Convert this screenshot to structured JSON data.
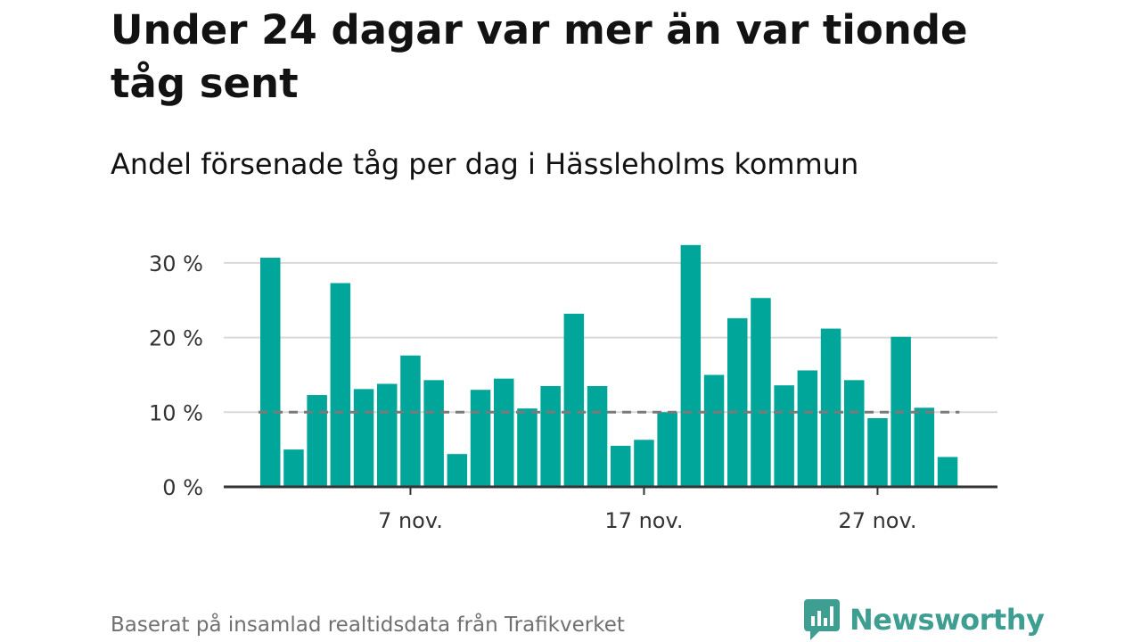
{
  "title": "Under 24 dagar var mer än var tionde tåg sent",
  "subtitle": "Andel försenade tåg per dag i Hässleholms kommun",
  "source": "Baserat på insamlad realtidsdata från Trafikverket",
  "brand": {
    "name": "Newsworthy",
    "icon": "newsworthy-logo-icon",
    "color": "#3e9e92"
  },
  "colors": {
    "bar": "#00a69a",
    "grid": "#d9d9d9",
    "reference": "#7a7a7a",
    "axis": "#333333"
  },
  "chart_data": {
    "type": "bar",
    "x": [
      1,
      2,
      3,
      4,
      5,
      6,
      7,
      8,
      9,
      10,
      11,
      12,
      13,
      14,
      15,
      16,
      17,
      18,
      19,
      20,
      21,
      22,
      23,
      24,
      25,
      26,
      27,
      28,
      29,
      30
    ],
    "x_unit": "day of November",
    "values": [
      30.7,
      5.0,
      12.3,
      27.3,
      13.1,
      13.8,
      17.6,
      14.3,
      4.4,
      13.0,
      14.5,
      10.5,
      13.5,
      23.2,
      13.5,
      5.5,
      6.3,
      10.0,
      32.4,
      15.0,
      22.6,
      25.3,
      13.6,
      15.6,
      21.2,
      14.3,
      9.2,
      20.1,
      10.6,
      4.0
    ],
    "unit": "%",
    "ylim": [
      0,
      32.5
    ],
    "yticks": [
      0,
      10,
      20,
      30
    ],
    "ytick_labels": [
      "0 %",
      "10 %",
      "20 %",
      "30 %"
    ],
    "xticks": [
      7,
      17,
      27
    ],
    "xtick_labels": [
      "7 nov.",
      "17 nov.",
      "27 nov."
    ],
    "reference_line": 10,
    "grid": true,
    "legend": "none"
  }
}
